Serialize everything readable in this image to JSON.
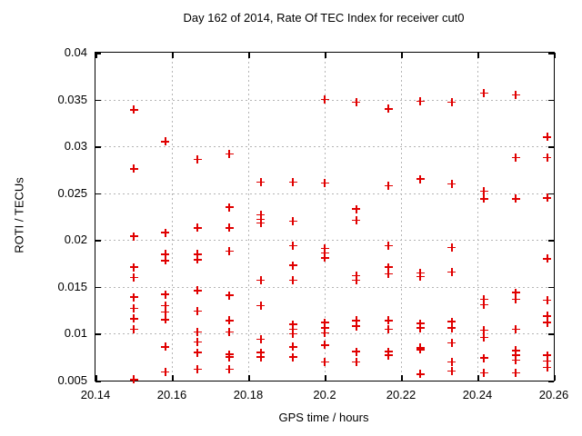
{
  "chart_data": {
    "type": "scatter",
    "title": "Day 162 of 2014, Rate Of TEC Index for receiver cut0",
    "xlabel": "GPS time / hours",
    "ylabel": "ROTI / TECUs",
    "xlim": [
      20.14,
      20.26
    ],
    "ylim": [
      0.005,
      0.04
    ],
    "grid": true,
    "legend": "none",
    "marker": "plus",
    "marker_color": "#e00000",
    "x_ticks": [
      {
        "v": 20.14,
        "label": "20.14"
      },
      {
        "v": 20.16,
        "label": "20.16"
      },
      {
        "v": 20.18,
        "label": "20.18"
      },
      {
        "v": 20.2,
        "label": "20.2"
      },
      {
        "v": 20.22,
        "label": "20.22"
      },
      {
        "v": 20.24,
        "label": "20.24"
      },
      {
        "v": 20.26,
        "label": "20.26"
      }
    ],
    "y_ticks": [
      {
        "v": 0.04,
        "label": "0.04"
      },
      {
        "v": 0.035,
        "label": "0.035"
      },
      {
        "v": 0.03,
        "label": "0.03"
      },
      {
        "v": 0.025,
        "label": "0.025"
      },
      {
        "v": 0.02,
        "label": "0.02"
      },
      {
        "v": 0.015,
        "label": "0.015"
      },
      {
        "v": 0.01,
        "label": "0.01"
      },
      {
        "v": 0.005,
        "label": "0.005"
      }
    ],
    "points": [
      [
        20.15,
        0.0339
      ],
      [
        20.15,
        0.0276
      ],
      [
        20.15,
        0.0204
      ],
      [
        20.15,
        0.0171
      ],
      [
        20.15,
        0.016
      ],
      [
        20.15,
        0.0139
      ],
      [
        20.15,
        0.0127
      ],
      [
        20.15,
        0.0116
      ],
      [
        20.15,
        0.0105
      ],
      [
        20.15,
        0.0051
      ],
      [
        20.1583,
        0.0305
      ],
      [
        20.1583,
        0.0208
      ],
      [
        20.1583,
        0.0185
      ],
      [
        20.1583,
        0.0178
      ],
      [
        20.1583,
        0.0142
      ],
      [
        20.1583,
        0.013
      ],
      [
        20.1583,
        0.0123
      ],
      [
        20.1583,
        0.0115
      ],
      [
        20.1583,
        0.0086
      ],
      [
        20.1583,
        0.0059
      ],
      [
        20.1667,
        0.0286
      ],
      [
        20.1667,
        0.0213
      ],
      [
        20.1667,
        0.0185
      ],
      [
        20.1667,
        0.0179
      ],
      [
        20.1667,
        0.0146
      ],
      [
        20.1667,
        0.0124
      ],
      [
        20.1667,
        0.0102
      ],
      [
        20.1667,
        0.0091
      ],
      [
        20.1667,
        0.008
      ],
      [
        20.1667,
        0.0062
      ],
      [
        20.175,
        0.0292
      ],
      [
        20.175,
        0.0235
      ],
      [
        20.175,
        0.0213
      ],
      [
        20.175,
        0.0188
      ],
      [
        20.175,
        0.0141
      ],
      [
        20.175,
        0.0114
      ],
      [
        20.175,
        0.0102
      ],
      [
        20.175,
        0.0078
      ],
      [
        20.175,
        0.0075
      ],
      [
        20.175,
        0.0062
      ],
      [
        20.1833,
        0.0262
      ],
      [
        20.1833,
        0.0227
      ],
      [
        20.1833,
        0.0222
      ],
      [
        20.1833,
        0.0218
      ],
      [
        20.1833,
        0.0157
      ],
      [
        20.1833,
        0.013
      ],
      [
        20.1833,
        0.0094
      ],
      [
        20.1833,
        0.008
      ],
      [
        20.1833,
        0.0075
      ],
      [
        20.1917,
        0.0262
      ],
      [
        20.1917,
        0.022
      ],
      [
        20.1917,
        0.0194
      ],
      [
        20.1917,
        0.0173
      ],
      [
        20.1917,
        0.0157
      ],
      [
        20.1917,
        0.011
      ],
      [
        20.1917,
        0.0105
      ],
      [
        20.1917,
        0.01
      ],
      [
        20.1917,
        0.0086
      ],
      [
        20.1917,
        0.0075
      ],
      [
        20.2,
        0.035
      ],
      [
        20.2,
        0.0261
      ],
      [
        20.2,
        0.0191
      ],
      [
        20.2,
        0.0186
      ],
      [
        20.2,
        0.0181
      ],
      [
        20.2,
        0.0112
      ],
      [
        20.2,
        0.0106
      ],
      [
        20.2,
        0.0101
      ],
      [
        20.2,
        0.0088
      ],
      [
        20.2,
        0.007
      ],
      [
        20.2083,
        0.0347
      ],
      [
        20.2083,
        0.0233
      ],
      [
        20.2083,
        0.0221
      ],
      [
        20.2083,
        0.0162
      ],
      [
        20.2083,
        0.0157
      ],
      [
        20.2083,
        0.0114
      ],
      [
        20.2083,
        0.0108
      ],
      [
        20.2083,
        0.0081
      ],
      [
        20.2083,
        0.007
      ],
      [
        20.2167,
        0.034
      ],
      [
        20.2167,
        0.0258
      ],
      [
        20.2167,
        0.0194
      ],
      [
        20.2167,
        0.0171
      ],
      [
        20.2167,
        0.0164
      ],
      [
        20.2167,
        0.0114
      ],
      [
        20.2167,
        0.0105
      ],
      [
        20.2167,
        0.0081
      ],
      [
        20.2167,
        0.0077
      ],
      [
        20.225,
        0.0348
      ],
      [
        20.225,
        0.0265
      ],
      [
        20.225,
        0.0165
      ],
      [
        20.225,
        0.0161
      ],
      [
        20.225,
        0.0111
      ],
      [
        20.225,
        0.0106
      ],
      [
        20.225,
        0.0085
      ],
      [
        20.225,
        0.0083
      ],
      [
        20.225,
        0.0057
      ],
      [
        20.2333,
        0.0347
      ],
      [
        20.2333,
        0.026
      ],
      [
        20.2333,
        0.0192
      ],
      [
        20.2333,
        0.0166
      ],
      [
        20.2333,
        0.0113
      ],
      [
        20.2333,
        0.0106
      ],
      [
        20.2333,
        0.009
      ],
      [
        20.2333,
        0.007
      ],
      [
        20.2333,
        0.006
      ],
      [
        20.2417,
        0.0357
      ],
      [
        20.2417,
        0.0252
      ],
      [
        20.2417,
        0.0244
      ],
      [
        20.2417,
        0.0137
      ],
      [
        20.2417,
        0.0131
      ],
      [
        20.2417,
        0.0104
      ],
      [
        20.2417,
        0.0096
      ],
      [
        20.2417,
        0.0074
      ],
      [
        20.2417,
        0.0058
      ],
      [
        20.25,
        0.0355
      ],
      [
        20.25,
        0.0288
      ],
      [
        20.25,
        0.0244
      ],
      [
        20.25,
        0.0144
      ],
      [
        20.25,
        0.0137
      ],
      [
        20.25,
        0.0105
      ],
      [
        20.25,
        0.0082
      ],
      [
        20.25,
        0.0077
      ],
      [
        20.25,
        0.0072
      ],
      [
        20.25,
        0.0058
      ],
      [
        20.2583,
        0.031
      ],
      [
        20.2583,
        0.0288
      ],
      [
        20.2583,
        0.0245
      ],
      [
        20.2583,
        0.018
      ],
      [
        20.2583,
        0.0136
      ],
      [
        20.2583,
        0.0119
      ],
      [
        20.2583,
        0.0112
      ],
      [
        20.2583,
        0.0077
      ],
      [
        20.2583,
        0.0071
      ],
      [
        20.2583,
        0.0064
      ]
    ]
  }
}
